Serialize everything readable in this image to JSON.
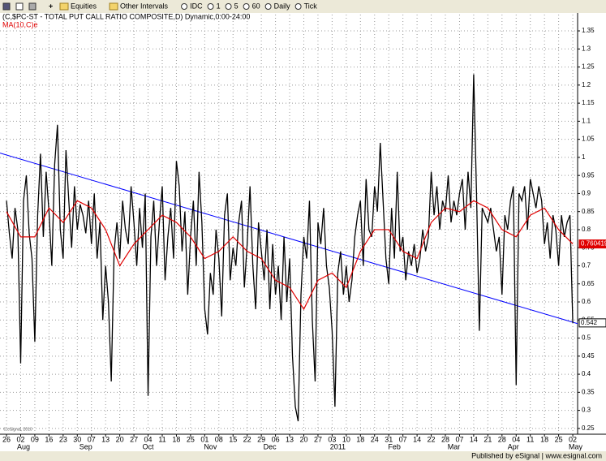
{
  "toolbar": {
    "items": [
      "Equities",
      "Other Intervals",
      "IDC",
      "1",
      "5",
      "60",
      "Daily",
      "Tick"
    ]
  },
  "footer": "Published by eSignal | www.esignal.com",
  "chart_data": {
    "type": "line",
    "title": "(C,$PC-ST - TOTAL PUT CALL RATIO COMPOSITE,D) Dynamic,0:00-24:00",
    "subtitle": "MA(10,C)e",
    "watermark": "© eSignal, 2010",
    "x": [
      0,
      1,
      2,
      3,
      4,
      5,
      6,
      7,
      8,
      9,
      10,
      11,
      12,
      13,
      14,
      15,
      16,
      17,
      18,
      19,
      20,
      21,
      22,
      23,
      24,
      25,
      26,
      27,
      28,
      29,
      30,
      31,
      32,
      33,
      34,
      35,
      36,
      37,
      38,
      39,
      40,
      41,
      42,
      43,
      44,
      45,
      46,
      47,
      48,
      49,
      50,
      51,
      52,
      53,
      54,
      55,
      56,
      57,
      58,
      59,
      60,
      61,
      62,
      63,
      64,
      65,
      66,
      67,
      68,
      69,
      70,
      71,
      72,
      73,
      74,
      75,
      76,
      77,
      78,
      79,
      80,
      81,
      82,
      83,
      84,
      85,
      86,
      87,
      88,
      89,
      90,
      91,
      92,
      93,
      94,
      95,
      96,
      97,
      98,
      99,
      100,
      101,
      102,
      103,
      104,
      105,
      106,
      107,
      108,
      109,
      110,
      111,
      112,
      113,
      114,
      115,
      116,
      117,
      118,
      119,
      120,
      121,
      122,
      123,
      124,
      125,
      126,
      127,
      128,
      129,
      130,
      131,
      132,
      133,
      134,
      135,
      136,
      137,
      138,
      139,
      140,
      141,
      142,
      143,
      144,
      145,
      146,
      147,
      148,
      149,
      150,
      151,
      152,
      153,
      154,
      155,
      156,
      157,
      158,
      159,
      160,
      161,
      162,
      163,
      164,
      165,
      166,
      167,
      168,
      169,
      170,
      171,
      172,
      173,
      174,
      175,
      176,
      177,
      178,
      179,
      180,
      181,
      182,
      183,
      184,
      185,
      186,
      187,
      188,
      189,
      190,
      191,
      192,
      193,
      194,
      195,
      196,
      197,
      198,
      199,
      200
    ],
    "series": [
      {
        "name": "$PC-ST",
        "color": "#000000",
        "values": [
          0.88,
          0.79,
          0.72,
          0.86,
          0.8,
          0.43,
          0.88,
          0.95,
          0.79,
          0.72,
          0.49,
          0.84,
          1.01,
          0.78,
          0.96,
          0.85,
          0.7,
          0.98,
          1.09,
          0.8,
          0.72,
          1.02,
          0.88,
          0.75,
          0.92,
          0.8,
          0.87,
          0.84,
          0.79,
          0.88,
          0.76,
          0.9,
          0.72,
          0.82,
          0.55,
          0.7,
          0.6,
          0.38,
          0.74,
          0.82,
          0.72,
          0.88,
          0.8,
          0.76,
          0.92,
          0.82,
          0.7,
          0.86,
          0.75,
          0.9,
          0.34,
          0.78,
          0.88,
          0.7,
          0.82,
          0.92,
          0.66,
          0.78,
          0.86,
          0.72,
          0.99,
          0.92,
          0.74,
          0.85,
          0.62,
          0.78,
          0.88,
          0.7,
          0.96,
          0.82,
          0.58,
          0.51,
          0.68,
          0.62,
          0.8,
          0.72,
          0.56,
          0.84,
          0.9,
          0.66,
          0.75,
          0.7,
          0.82,
          0.88,
          0.64,
          0.76,
          0.92,
          0.7,
          0.58,
          0.82,
          0.74,
          0.66,
          0.8,
          0.58,
          0.76,
          0.62,
          0.7,
          0.55,
          0.78,
          0.6,
          0.72,
          0.45,
          0.31,
          0.27,
          0.62,
          0.78,
          0.72,
          0.88,
          0.55,
          0.38,
          0.82,
          0.76,
          0.86,
          0.7,
          0.64,
          0.52,
          0.31,
          0.68,
          0.74,
          0.62,
          0.7,
          0.6,
          0.66,
          0.78,
          0.84,
          0.88,
          0.7,
          0.94,
          0.8,
          0.78,
          0.92,
          0.85,
          1.04,
          0.88,
          0.72,
          0.65,
          0.86,
          0.72,
          0.96,
          0.74,
          0.78,
          0.66,
          0.74,
          0.7,
          0.76,
          0.68,
          0.72,
          0.8,
          0.74,
          0.78,
          0.96,
          0.84,
          0.92,
          0.8,
          0.88,
          0.85,
          0.95,
          0.82,
          0.88,
          0.84,
          0.9,
          0.94,
          0.8,
          0.96,
          0.86,
          1.23,
          0.9,
          0.52,
          0.86,
          0.84,
          0.82,
          0.86,
          0.8,
          0.74,
          0.78,
          0.62,
          0.84,
          0.8,
          0.88,
          0.92,
          0.37,
          0.9,
          0.88,
          0.92,
          0.8,
          0.94,
          0.9,
          0.86,
          0.92,
          0.88,
          0.76,
          0.82,
          0.72,
          0.84,
          0.8,
          0.7,
          0.84,
          0.78,
          0.82,
          0.84,
          0.542
        ]
      },
      {
        "name": "MA(10,C)e",
        "color": "#e00000",
        "x": [
          0,
          5,
          10,
          15,
          20,
          25,
          30,
          35,
          40,
          45,
          50,
          55,
          60,
          65,
          70,
          75,
          80,
          85,
          90,
          95,
          100,
          105,
          110,
          115,
          120,
          125,
          130,
          135,
          140,
          145,
          150,
          155,
          160,
          165,
          170,
          175,
          180,
          185,
          190,
          195,
          200
        ],
        "values": [
          0.85,
          0.78,
          0.78,
          0.86,
          0.82,
          0.88,
          0.86,
          0.8,
          0.7,
          0.76,
          0.8,
          0.84,
          0.82,
          0.78,
          0.72,
          0.74,
          0.78,
          0.74,
          0.72,
          0.66,
          0.64,
          0.58,
          0.66,
          0.68,
          0.64,
          0.74,
          0.8,
          0.8,
          0.74,
          0.72,
          0.82,
          0.86,
          0.85,
          0.88,
          0.86,
          0.8,
          0.78,
          0.84,
          0.86,
          0.8,
          0.760419
        ]
      }
    ],
    "trendline": {
      "color": "#0000ff",
      "x": [
        -2.3,
        201.7
      ],
      "values": [
        1.012,
        0.54
      ]
    },
    "xlim": [
      -2.3,
      201.7
    ],
    "ylim": [
      0.234,
      1.395
    ],
    "yticks": [
      0.25,
      0.3,
      0.35,
      0.4,
      0.45,
      0.5,
      0.55,
      0.6,
      0.65,
      0.7,
      0.75,
      0.8,
      0.85,
      0.9,
      0.95,
      1,
      1.05,
      1.1,
      1.15,
      1.2,
      1.25,
      1.3,
      1.35
    ],
    "xticks": [
      {
        "value": 0,
        "label": "26"
      },
      {
        "value": 5,
        "label": "02"
      },
      {
        "value": 10,
        "label": "09"
      },
      {
        "value": 15,
        "label": "16"
      },
      {
        "value": 20,
        "label": "23"
      },
      {
        "value": 25,
        "label": "30"
      },
      {
        "value": 30,
        "label": "07"
      },
      {
        "value": 35,
        "label": "13"
      },
      {
        "value": 40,
        "label": "20"
      },
      {
        "value": 45,
        "label": "27"
      },
      {
        "value": 50,
        "label": "04"
      },
      {
        "value": 55,
        "label": "11"
      },
      {
        "value": 60,
        "label": "18"
      },
      {
        "value": 65,
        "label": "25"
      },
      {
        "value": 70,
        "label": "01"
      },
      {
        "value": 75,
        "label": "08"
      },
      {
        "value": 80,
        "label": "15"
      },
      {
        "value": 85,
        "label": "22"
      },
      {
        "value": 90,
        "label": "29"
      },
      {
        "value": 95,
        "label": "06"
      },
      {
        "value": 100,
        "label": "13"
      },
      {
        "value": 105,
        "label": "20"
      },
      {
        "value": 110,
        "label": "27"
      },
      {
        "value": 115,
        "label": "03"
      },
      {
        "value": 120,
        "label": "10"
      },
      {
        "value": 125,
        "label": "18"
      },
      {
        "value": 130,
        "label": "24"
      },
      {
        "value": 135,
        "label": "31"
      },
      {
        "value": 140,
        "label": "07"
      },
      {
        "value": 145,
        "label": "14"
      },
      {
        "value": 150,
        "label": "22"
      },
      {
        "value": 155,
        "label": "28"
      },
      {
        "value": 160,
        "label": "07"
      },
      {
        "value": 165,
        "label": "14"
      },
      {
        "value": 170,
        "label": "21"
      },
      {
        "value": 175,
        "label": "28"
      },
      {
        "value": 180,
        "label": "04"
      },
      {
        "value": 185,
        "label": "11"
      },
      {
        "value": 190,
        "label": "18"
      },
      {
        "value": 195,
        "label": "25"
      },
      {
        "value": 200,
        "label": "02"
      }
    ],
    "month_labels": [
      {
        "value": 6,
        "label": "Aug"
      },
      {
        "value": 28,
        "label": "Sep"
      },
      {
        "value": 50,
        "label": "Oct"
      },
      {
        "value": 72,
        "label": "Nov"
      },
      {
        "value": 93,
        "label": "Dec"
      },
      {
        "value": 117,
        "label": "2011"
      },
      {
        "value": 137,
        "label": "Feb"
      },
      {
        "value": 158,
        "label": "Mar"
      },
      {
        "value": 179,
        "label": "Apr"
      },
      {
        "value": 201,
        "label": "May"
      }
    ],
    "grid": true
  }
}
